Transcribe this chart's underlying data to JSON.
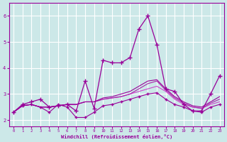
{
  "bg_color": "#cce8e8",
  "grid_color": "#ffffff",
  "line_color": "#990099",
  "xlim": [
    -0.5,
    23.5
  ],
  "ylim": [
    1.75,
    6.5
  ],
  "xticks": [
    0,
    1,
    2,
    3,
    4,
    5,
    6,
    7,
    8,
    9,
    10,
    11,
    12,
    13,
    14,
    15,
    16,
    17,
    18,
    19,
    20,
    21,
    22,
    23
  ],
  "yticks": [
    2,
    3,
    4,
    5,
    6
  ],
  "xlabel": "Windchill (Refroidissement éolien,°C)",
  "series": [
    {
      "x": [
        0,
        1,
        2,
        3,
        4,
        5,
        6,
        7,
        8,
        9,
        10,
        11,
        12,
        13,
        14,
        15,
        16,
        17,
        18,
        19,
        20,
        21,
        22,
        23
      ],
      "y": [
        2.3,
        2.55,
        2.6,
        2.5,
        2.5,
        2.55,
        2.6,
        2.6,
        2.7,
        2.7,
        2.8,
        2.85,
        2.9,
        3.0,
        3.1,
        3.2,
        3.3,
        3.1,
        2.8,
        2.6,
        2.5,
        2.45,
        2.6,
        2.7
      ],
      "color": "#cc44cc",
      "lw": 0.8,
      "marker": null,
      "ls": "-"
    },
    {
      "x": [
        0,
        1,
        2,
        3,
        4,
        5,
        6,
        7,
        8,
        9,
        10,
        11,
        12,
        13,
        14,
        15,
        16,
        17,
        18,
        19,
        20,
        21,
        22,
        23
      ],
      "y": [
        2.3,
        2.55,
        2.6,
        2.5,
        2.5,
        2.55,
        2.6,
        2.6,
        2.7,
        2.7,
        2.8,
        2.85,
        2.9,
        3.0,
        3.2,
        3.4,
        3.5,
        3.15,
        2.85,
        2.65,
        2.5,
        2.45,
        2.65,
        2.8
      ],
      "color": "#aa22aa",
      "lw": 0.8,
      "marker": null,
      "ls": "-"
    },
    {
      "x": [
        0,
        1,
        2,
        3,
        4,
        5,
        6,
        7,
        8,
        9,
        10,
        11,
        12,
        13,
        14,
        15,
        16,
        17,
        18,
        19,
        20,
        21,
        22,
        23
      ],
      "y": [
        2.3,
        2.55,
        2.6,
        2.5,
        2.5,
        2.55,
        2.6,
        2.6,
        2.7,
        2.7,
        2.85,
        2.9,
        3.0,
        3.1,
        3.3,
        3.5,
        3.55,
        3.2,
        2.9,
        2.7,
        2.55,
        2.5,
        2.7,
        2.9
      ],
      "color": "#990099",
      "lw": 0.8,
      "marker": null,
      "ls": "-"
    },
    {
      "x": [
        0,
        1,
        2,
        3,
        4,
        5,
        6,
        7,
        8,
        9,
        10,
        11,
        12,
        13,
        14,
        15,
        16,
        17,
        18,
        19,
        20,
        21,
        22,
        23
      ],
      "y": [
        2.3,
        2.55,
        2.6,
        2.5,
        2.3,
        2.6,
        2.5,
        2.1,
        2.1,
        2.3,
        2.55,
        2.6,
        2.7,
        2.8,
        2.9,
        3.0,
        3.05,
        2.8,
        2.6,
        2.5,
        2.35,
        2.3,
        2.5,
        2.6
      ],
      "color": "#990099",
      "lw": 0.8,
      "marker": "+",
      "ms": 3,
      "ls": "-"
    },
    {
      "x": [
        0,
        1,
        2,
        3,
        4,
        5,
        6,
        7,
        8,
        9,
        10,
        11,
        12,
        13,
        14,
        15,
        16,
        17,
        18,
        19,
        20,
        21,
        22,
        23
      ],
      "y": [
        2.3,
        2.6,
        2.7,
        2.8,
        2.5,
        2.55,
        2.6,
        2.35,
        3.5,
        2.45,
        4.3,
        4.2,
        4.2,
        4.4,
        5.5,
        6.0,
        4.9,
        3.2,
        3.1,
        2.6,
        2.35,
        2.35,
        3.0,
        3.7
      ],
      "color": "#990099",
      "lw": 0.9,
      "marker": "+",
      "ms": 4,
      "ls": "-"
    }
  ]
}
